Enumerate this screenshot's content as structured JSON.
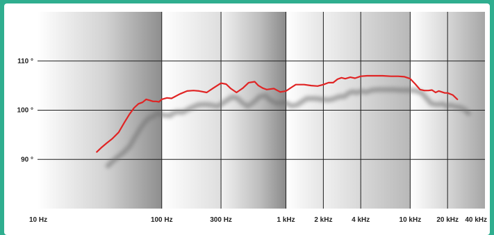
{
  "chart_data": {
    "type": "line",
    "title": "",
    "xlabel": "",
    "ylabel": "",
    "x_scale": "log",
    "xlim": [
      10,
      40000
    ],
    "ylim": [
      80,
      120
    ],
    "grid": true,
    "x_ticks": [
      {
        "value": 10,
        "label": "10 Hz"
      },
      {
        "value": 100,
        "label": "100 Hz"
      },
      {
        "value": 300,
        "label": "300 Hz"
      },
      {
        "value": 1000,
        "label": "1 kHz"
      },
      {
        "value": 2000,
        "label": "2 kHz"
      },
      {
        "value": 4000,
        "label": "4 kHz"
      },
      {
        "value": 10000,
        "label": "10 kHz"
      },
      {
        "value": 20000,
        "label": "20 kHz"
      },
      {
        "value": 40000,
        "label": "40 kHz"
      }
    ],
    "y_ticks": [
      {
        "value": 90,
        "label": "90 °"
      },
      {
        "value": 100,
        "label": "100 °"
      },
      {
        "value": 110,
        "label": "110 °"
      }
    ],
    "colors": {
      "line": "#e02424",
      "shadow": "#6e6e6e",
      "grid": "#1e1e1e",
      "frame": "#2fae8f"
    },
    "series": [
      {
        "x": [
          30,
          33,
          36,
          40,
          45,
          50,
          55,
          60,
          65,
          70,
          75,
          80,
          85,
          90,
          95,
          100,
          110,
          120,
          140,
          160,
          180,
          200,
          230,
          260,
          300,
          330,
          360,
          400,
          450,
          500,
          560,
          600,
          650,
          700,
          800,
          900,
          1000,
          1100,
          1200,
          1400,
          1600,
          1800,
          2000,
          2200,
          2400,
          2600,
          2800,
          3000,
          3300,
          3600,
          4000,
          4500,
          5000,
          6000,
          7000,
          8000,
          9000,
          10000,
          11000,
          12000,
          13000,
          14000,
          15000,
          16000,
          17000,
          18000,
          19000,
          20000,
          22000,
          24000
        ],
        "y": [
          91.5,
          92.5,
          93.3,
          94.2,
          95.5,
          97.5,
          99.2,
          100.5,
          101.3,
          101.6,
          102.2,
          102.0,
          101.8,
          101.8,
          101.7,
          102.2,
          102.5,
          102.4,
          103.3,
          103.9,
          104.0,
          103.9,
          103.6,
          104.5,
          105.5,
          105.3,
          104.4,
          103.6,
          104.5,
          105.6,
          105.8,
          105.0,
          104.5,
          104.2,
          104.4,
          103.7,
          103.9,
          104.6,
          105.2,
          105.2,
          105.0,
          104.9,
          105.2,
          105.6,
          105.6,
          106.3,
          106.6,
          106.4,
          106.7,
          106.5,
          106.9,
          107.0,
          107.0,
          107.0,
          106.9,
          106.9,
          106.8,
          106.4,
          105.3,
          104.2,
          104.0,
          104.0,
          104.1,
          103.6,
          103.9,
          103.7,
          103.5,
          103.5,
          103.1,
          102.2
        ]
      }
    ]
  }
}
